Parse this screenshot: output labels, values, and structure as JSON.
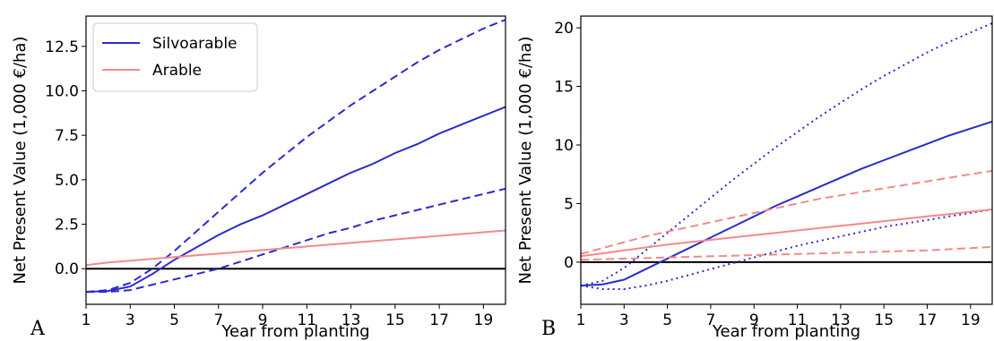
{
  "colors": {
    "silvoarable": "#2b2bcc",
    "arable": "#f28a8a",
    "zero_line": "#000000"
  },
  "chart_data": [
    {
      "panel": "A",
      "type": "line",
      "xlabel": "Year from planting",
      "ylabel": "Net Present Value (1,000 €/ha)",
      "xlim": [
        1,
        20
      ],
      "ylim": [
        -2.0,
        14.2
      ],
      "xticks": [
        1,
        3,
        5,
        7,
        9,
        11,
        13,
        15,
        17,
        19
      ],
      "yticks": [
        0.0,
        2.5,
        5.0,
        7.5,
        10.0,
        12.5
      ],
      "ytick_labels": [
        "0.0",
        "2.5",
        "5.0",
        "7.5",
        "10.0",
        "12.5"
      ],
      "legend": {
        "position": "top-left",
        "entries": [
          "Silvoarable",
          "Arable"
        ]
      },
      "series": [
        {
          "name": "Silvoarable",
          "style": "solid",
          "color": "silvoarable",
          "x": [
            1,
            2,
            3,
            4,
            5,
            6,
            7,
            8,
            9,
            10,
            11,
            12,
            13,
            14,
            15,
            16,
            17,
            18,
            19,
            20
          ],
          "y": [
            -1.3,
            -1.25,
            -1.0,
            -0.3,
            0.5,
            1.2,
            1.9,
            2.5,
            3.0,
            3.6,
            4.2,
            4.8,
            5.4,
            5.9,
            6.5,
            7.0,
            7.6,
            8.1,
            8.6,
            9.1
          ]
        },
        {
          "style": "dashed",
          "color": "silvoarable",
          "x": [
            1,
            2,
            3,
            4,
            5,
            6,
            7,
            8,
            9,
            10,
            11,
            12,
            13,
            14,
            15,
            16,
            17,
            18,
            19,
            20
          ],
          "y": [
            -1.3,
            -1.2,
            -0.8,
            0.0,
            1.0,
            2.1,
            3.2,
            4.3,
            5.4,
            6.4,
            7.4,
            8.3,
            9.2,
            10.0,
            10.8,
            11.6,
            12.3,
            12.9,
            13.5,
            14.0
          ]
        },
        {
          "style": "dashed",
          "color": "silvoarable",
          "x": [
            1,
            2,
            3,
            4,
            5,
            6,
            7,
            8,
            9,
            10,
            11,
            12,
            13,
            14,
            15,
            16,
            17,
            18,
            19,
            20
          ],
          "y": [
            -1.3,
            -1.3,
            -1.2,
            -0.9,
            -0.6,
            -0.3,
            0.0,
            0.4,
            0.8,
            1.2,
            1.6,
            2.0,
            2.3,
            2.7,
            3.0,
            3.3,
            3.6,
            3.9,
            4.2,
            4.5
          ]
        },
        {
          "name": "Arable",
          "style": "solid",
          "color": "arable",
          "x": [
            1,
            2,
            3,
            4,
            5,
            6,
            7,
            8,
            9,
            10,
            11,
            12,
            13,
            14,
            15,
            16,
            17,
            18,
            19,
            20
          ],
          "y": [
            0.2,
            0.35,
            0.45,
            0.55,
            0.65,
            0.75,
            0.85,
            0.95,
            1.05,
            1.15,
            1.25,
            1.35,
            1.45,
            1.55,
            1.65,
            1.75,
            1.85,
            1.95,
            2.05,
            2.15
          ]
        }
      ]
    },
    {
      "panel": "B",
      "type": "line",
      "xlabel": "Year from planting",
      "ylabel": "Net Present Value (1,000 €/ha)",
      "xlim": [
        1,
        20
      ],
      "ylim": [
        -3.6,
        21.0
      ],
      "xticks": [
        1,
        3,
        5,
        7,
        9,
        11,
        13,
        15,
        17,
        19
      ],
      "yticks": [
        0,
        5,
        10,
        15,
        20
      ],
      "ytick_labels": [
        "0",
        "5",
        "10",
        "15",
        "20"
      ],
      "series": [
        {
          "style": "solid",
          "color": "silvoarable",
          "x": [
            1,
            2,
            3,
            4,
            5,
            6,
            7,
            8,
            9,
            10,
            11,
            12,
            13,
            14,
            15,
            16,
            17,
            18,
            19,
            20
          ],
          "y": [
            -2.0,
            -1.9,
            -1.5,
            -0.6,
            0.3,
            1.2,
            2.1,
            3.0,
            3.9,
            4.8,
            5.6,
            6.4,
            7.2,
            8.0,
            8.7,
            9.4,
            10.1,
            10.8,
            11.4,
            12.0
          ]
        },
        {
          "style": "dotted",
          "color": "silvoarable",
          "x": [
            1,
            2,
            3,
            4,
            5,
            6,
            7,
            8,
            9,
            10,
            11,
            12,
            13,
            14,
            15,
            16,
            17,
            18,
            19,
            20
          ],
          "y": [
            -2.0,
            -1.6,
            -0.5,
            1.0,
            2.5,
            4.0,
            5.5,
            7.0,
            8.4,
            9.8,
            11.1,
            12.4,
            13.6,
            14.8,
            15.9,
            16.9,
            17.9,
            18.8,
            19.6,
            20.4
          ]
        },
        {
          "style": "dotted",
          "color": "silvoarable",
          "x": [
            1,
            2,
            3,
            4,
            5,
            6,
            7,
            8,
            9,
            10,
            11,
            12,
            13,
            14,
            15,
            16,
            17,
            18,
            19,
            20
          ],
          "y": [
            -2.0,
            -2.3,
            -2.3,
            -2.0,
            -1.6,
            -1.1,
            -0.6,
            -0.1,
            0.4,
            0.9,
            1.4,
            1.8,
            2.2,
            2.6,
            3.0,
            3.3,
            3.6,
            3.9,
            4.2,
            4.5
          ]
        },
        {
          "style": "solid",
          "color": "arable",
          "x": [
            1,
            2,
            3,
            4,
            5,
            6,
            7,
            8,
            9,
            10,
            11,
            12,
            13,
            14,
            15,
            16,
            17,
            18,
            19,
            20
          ],
          "y": [
            0.5,
            0.75,
            1.0,
            1.25,
            1.5,
            1.7,
            1.9,
            2.1,
            2.3,
            2.5,
            2.7,
            2.9,
            3.1,
            3.3,
            3.5,
            3.7,
            3.9,
            4.1,
            4.3,
            4.5
          ]
        },
        {
          "style": "dashed",
          "color": "arable",
          "x": [
            1,
            2,
            3,
            4,
            5,
            6,
            7,
            8,
            9,
            10,
            11,
            12,
            13,
            14,
            15,
            16,
            17,
            18,
            19,
            20
          ],
          "y": [
            0.7,
            1.2,
            1.7,
            2.2,
            2.6,
            3.0,
            3.4,
            3.8,
            4.2,
            4.6,
            5.0,
            5.4,
            5.7,
            6.0,
            6.3,
            6.6,
            6.9,
            7.2,
            7.5,
            7.8
          ]
        },
        {
          "style": "dashed",
          "color": "arable",
          "x": [
            1,
            2,
            3,
            4,
            5,
            6,
            7,
            8,
            9,
            10,
            11,
            12,
            13,
            14,
            15,
            16,
            17,
            18,
            19,
            20
          ],
          "y": [
            0.2,
            0.25,
            0.3,
            0.35,
            0.4,
            0.45,
            0.5,
            0.55,
            0.6,
            0.65,
            0.7,
            0.75,
            0.8,
            0.85,
            0.9,
            0.95,
            1.0,
            1.1,
            1.2,
            1.3
          ]
        }
      ]
    }
  ]
}
